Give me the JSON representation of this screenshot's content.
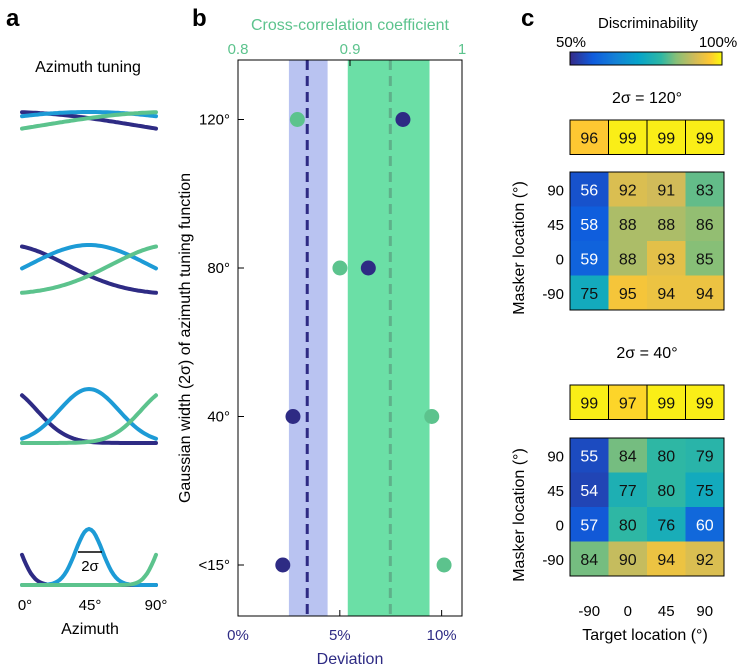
{
  "panel_labels": {
    "a": "a",
    "b": "b",
    "c": "c"
  },
  "panel_a": {
    "title": "Azimuth tuning",
    "width_label": "2σ",
    "x_ticks": [
      "0°",
      "45°",
      "90°"
    ],
    "xlabel": "Azimuth",
    "colors": {
      "dark": "#2e2b84",
      "mid": "#1d9bd6",
      "green": "#5cc38d"
    }
  },
  "chart_data": [
    {
      "type": "scatter",
      "title": "",
      "ylabel": "Gaussian width (2σ) of azimuth tuning function",
      "categories": [
        "<15°",
        "40°",
        "80°",
        "120°"
      ],
      "bottom_axis": {
        "label": "Deviation",
        "ticks": [
          "0%",
          "5%",
          "10%"
        ],
        "range": [
          0,
          0.11
        ],
        "color": "#2e2b84"
      },
      "top_axis": {
        "label": "Cross-correlation coefficient",
        "ticks": [
          "0.8",
          "0.9",
          "1"
        ],
        "range": [
          0.8,
          1.0
        ],
        "color": "#5cc38d"
      },
      "series": [
        {
          "axis": "bottom",
          "color": "#2e2b84",
          "values": [
            0.022,
            0.027,
            0.064,
            0.081
          ],
          "mean": 0.034,
          "band": [
            0.025,
            0.044
          ]
        },
        {
          "axis": "top",
          "color": "#5cc38d",
          "values": [
            0.984,
            0.973,
            0.891,
            0.853
          ],
          "mean": 0.936,
          "band": [
            0.898,
            0.971
          ]
        }
      ]
    },
    {
      "type": "heatmap",
      "title": "Discriminability",
      "colorbar": {
        "min_label": "50%",
        "max_label": "100%",
        "range": [
          50,
          100
        ]
      },
      "xlabel": "Target location (°)",
      "ylabel": "Masker location (°)",
      "x_ticks": [
        "-90",
        "0",
        "45",
        "90"
      ],
      "y_ticks": [
        "90",
        "45",
        "0",
        "-90"
      ],
      "blocks": [
        {
          "label": "2σ = 120°",
          "single_row": [
            96,
            99,
            99,
            99
          ],
          "matrix": [
            [
              56,
              92,
              91,
              83
            ],
            [
              58,
              88,
              88,
              86
            ],
            [
              59,
              88,
              93,
              85
            ],
            [
              75,
              95,
              94,
              94
            ]
          ]
        },
        {
          "label": "2σ = 40°",
          "single_row": [
            99,
            97,
            99,
            99
          ],
          "matrix": [
            [
              55,
              84,
              80,
              79
            ],
            [
              54,
              77,
              80,
              75
            ],
            [
              57,
              80,
              76,
              60
            ],
            [
              84,
              90,
              94,
              92
            ]
          ]
        }
      ]
    }
  ]
}
